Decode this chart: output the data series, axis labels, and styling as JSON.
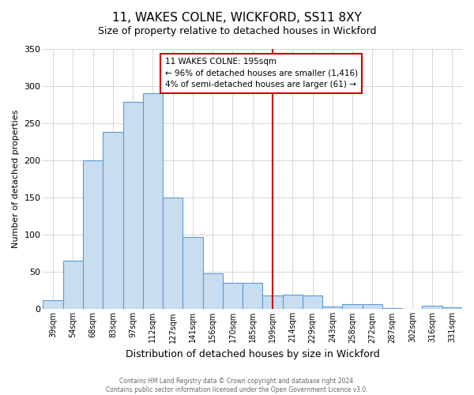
{
  "title": "11, WAKES COLNE, WICKFORD, SS11 8XY",
  "subtitle": "Size of property relative to detached houses in Wickford",
  "xlabel": "Distribution of detached houses by size in Wickford",
  "ylabel": "Number of detached properties",
  "bar_labels": [
    "39sqm",
    "54sqm",
    "68sqm",
    "83sqm",
    "97sqm",
    "112sqm",
    "127sqm",
    "141sqm",
    "156sqm",
    "170sqm",
    "185sqm",
    "199sqm",
    "214sqm",
    "229sqm",
    "243sqm",
    "258sqm",
    "272sqm",
    "287sqm",
    "302sqm",
    "316sqm",
    "331sqm"
  ],
  "bar_values": [
    12,
    65,
    200,
    238,
    278,
    290,
    150,
    97,
    48,
    35,
    35,
    18,
    20,
    18,
    4,
    7,
    7,
    2,
    0,
    5,
    3
  ],
  "bar_color": "#c9ddf0",
  "bar_edge_color": "#5b9bd5",
  "vline_x": 11,
  "vline_color": "#cc0000",
  "annotation_line1": "11 WAKES COLNE: 195sqm",
  "annotation_line2": "← 96% of detached houses are smaller (1,416)",
  "annotation_line3": "4% of semi-detached houses are larger (61) →",
  "annotation_box_edge": "#cc0000",
  "ylim": [
    0,
    350
  ],
  "yticks": [
    0,
    50,
    100,
    150,
    200,
    250,
    300,
    350
  ],
  "footer_line1": "Contains HM Land Registry data © Crown copyright and database right 2024.",
  "footer_line2": "Contains public sector information licensed under the Open Government Licence v3.0.",
  "background_color": "#ffffff",
  "grid_color": "#d0d0d0",
  "title_fontsize": 11,
  "subtitle_fontsize": 9,
  "ylabel_fontsize": 8,
  "xlabel_fontsize": 9
}
